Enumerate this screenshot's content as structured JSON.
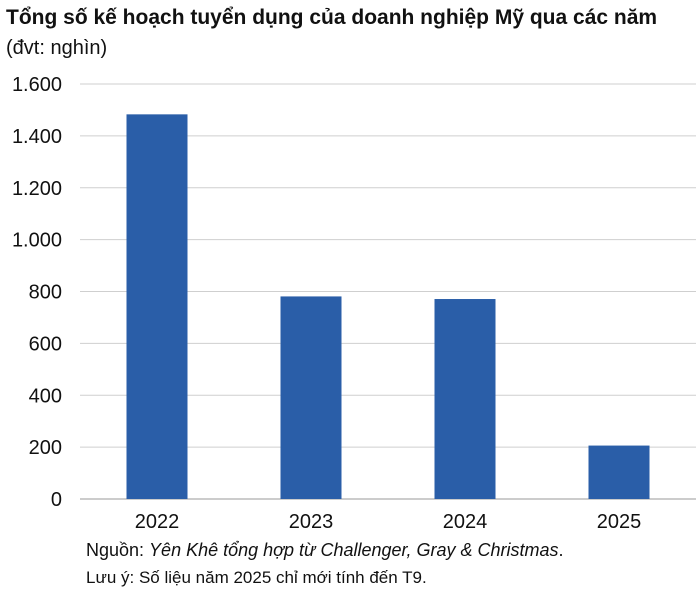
{
  "chart_data": {
    "type": "bar",
    "title": "Tổng số kế hoạch tuyển dụng của doanh nghiệp Mỹ qua các năm",
    "subtitle": "(đvt: nghìn)",
    "categories": [
      "2022",
      "2023",
      "2024",
      "2025"
    ],
    "values": [
      1483,
      781,
      771,
      206
    ],
    "ylim": [
      0,
      1600
    ],
    "yticks": [
      0,
      200,
      400,
      600,
      800,
      1000,
      1200,
      1400,
      1600
    ],
    "ytick_labels": [
      "0",
      "200",
      "400",
      "600",
      "800",
      "1.000",
      "1.200",
      "1.400",
      "1.600"
    ],
    "grid": true,
    "bar_color": "#2a5ea8",
    "grid_color": "#cfcfcf"
  },
  "footer": {
    "source_prefix": "Nguồn: ",
    "source_text": "Yên Khê tổng hợp từ Challenger, Gray & Christmas",
    "source_suffix": ".",
    "note": "Lưu ý: Số liệu năm 2025 chỉ mới tính đến T9."
  }
}
